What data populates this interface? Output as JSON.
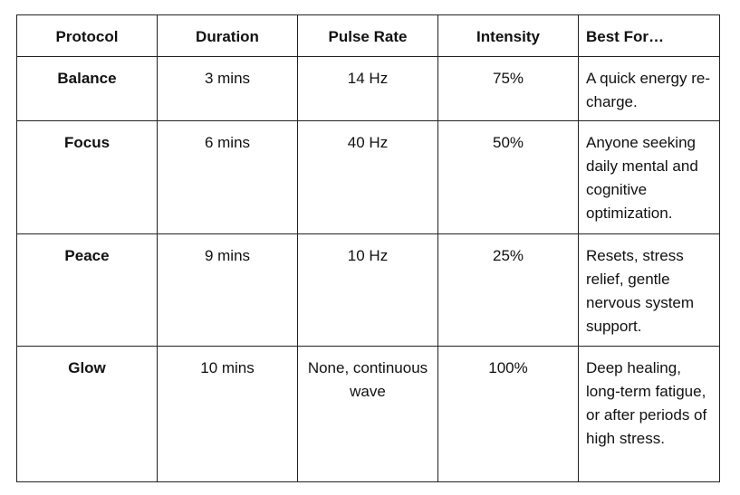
{
  "table": {
    "headers": {
      "protocol": "Protocol",
      "duration": "Duration",
      "pulse_rate": "Pulse Rate",
      "intensity": "Intensity",
      "best_for": "Best For…"
    },
    "rows": [
      {
        "protocol": "Balance",
        "duration": "3 mins",
        "pulse_rate": "14 Hz",
        "intensity": "75%",
        "best_for": "A quick energy re-charge."
      },
      {
        "protocol": "Focus",
        "duration": "6 mins",
        "pulse_rate": "40 Hz",
        "intensity": "50%",
        "best_for": "Anyone seeking daily mental and cognitive optimization."
      },
      {
        "protocol": "Peace",
        "duration": "9 mins",
        "pulse_rate": "10 Hz",
        "intensity": "25%",
        "best_for": "Resets, stress relief, gentle nervous system support."
      },
      {
        "protocol": "Glow",
        "duration": "10 mins",
        "pulse_rate": "None, continuous wave",
        "intensity": "100%",
        "best_for": "Deep healing, long-term fatigue, or after periods of high stress."
      }
    ]
  }
}
